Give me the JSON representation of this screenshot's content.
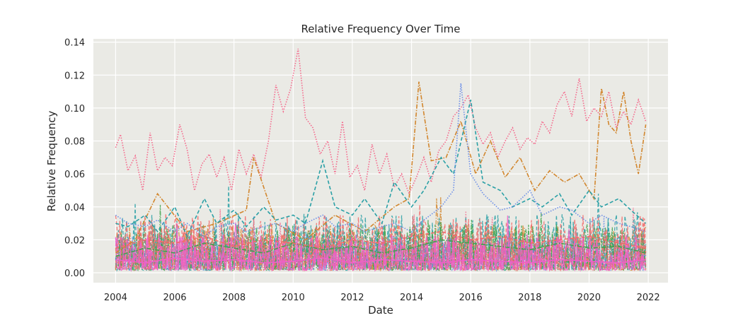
{
  "chart_data": {
    "type": "line",
    "title": "Relative Frequency Over Time",
    "xlabel": "Date",
    "ylabel": "Relative Frequency",
    "xlim": [
      "2003-04-01",
      "2022-09-01"
    ],
    "ylim": [
      -0.006,
      0.142
    ],
    "xticks": [
      "2004",
      "2006",
      "2008",
      "2010",
      "2012",
      "2014",
      "2016",
      "2018",
      "2020",
      "2022"
    ],
    "yticks": [
      "0.00",
      "0.02",
      "0.04",
      "0.06",
      "0.08",
      "0.10",
      "0.12",
      "0.14"
    ],
    "grid": true,
    "legend": "none",
    "background": "#eaeae5",
    "series": [
      {
        "color": "#f5678b",
        "dash": "dotted",
        "x": [
          "2004-01",
          "2004-03",
          "2004-06",
          "2004-09",
          "2004-12",
          "2005-03",
          "2005-06",
          "2005-09",
          "2005-12",
          "2006-03",
          "2006-06",
          "2006-09",
          "2006-12",
          "2007-03",
          "2007-06",
          "2007-09",
          "2007-12",
          "2008-03",
          "2008-06",
          "2008-09",
          "2008-12",
          "2009-03",
          "2009-06",
          "2009-09",
          "2009-12",
          "2010-03",
          "2010-06",
          "2010-09",
          "2010-12",
          "2011-03",
          "2011-06",
          "2011-09",
          "2011-12",
          "2012-03",
          "2012-06",
          "2012-09",
          "2012-12",
          "2013-03",
          "2013-06",
          "2013-09",
          "2013-12",
          "2014-03",
          "2014-06",
          "2014-09",
          "2014-12",
          "2015-03",
          "2015-06",
          "2015-09",
          "2015-12",
          "2016-03",
          "2016-06",
          "2016-09",
          "2016-12",
          "2017-03",
          "2017-06",
          "2017-09",
          "2017-12",
          "2018-03",
          "2018-06",
          "2018-09",
          "2018-12",
          "2019-03",
          "2019-06",
          "2019-09",
          "2019-12",
          "2020-03",
          "2020-06",
          "2020-09",
          "2020-12",
          "2021-03",
          "2021-06",
          "2021-09",
          "2021-12"
        ],
        "y": [
          0.076,
          0.084,
          0.062,
          0.071,
          0.05,
          0.085,
          0.062,
          0.07,
          0.065,
          0.09,
          0.075,
          0.05,
          0.066,
          0.072,
          0.058,
          0.07,
          0.05,
          0.075,
          0.06,
          0.072,
          0.058,
          0.08,
          0.114,
          0.098,
          0.112,
          0.136,
          0.094,
          0.088,
          0.072,
          0.08,
          0.06,
          0.092,
          0.058,
          0.065,
          0.05,
          0.078,
          0.06,
          0.072,
          0.052,
          0.06,
          0.048,
          0.058,
          0.07,
          0.055,
          0.074,
          0.08,
          0.095,
          0.1,
          0.108,
          0.088,
          0.078,
          0.085,
          0.07,
          0.08,
          0.088,
          0.075,
          0.082,
          0.078,
          0.092,
          0.085,
          0.102,
          0.11,
          0.095,
          0.118,
          0.092,
          0.1,
          0.095,
          0.11,
          0.088,
          0.098,
          0.09,
          0.105,
          0.092
        ]
      },
      {
        "color": "#d2872f",
        "dash": "dashdot",
        "x": [
          "2004-01",
          "2004-09",
          "2005-06",
          "2006-06",
          "2007-06",
          "2008-06",
          "2008-09",
          "2009-06",
          "2010-06",
          "2011-06",
          "2012-06",
          "2013-06",
          "2013-12",
          "2014-04",
          "2014-09",
          "2015-03",
          "2015-09",
          "2016-03",
          "2016-09",
          "2017-03",
          "2017-09",
          "2018-03",
          "2018-09",
          "2019-03",
          "2019-09",
          "2020-03",
          "2020-06",
          "2020-09",
          "2020-12",
          "2021-03",
          "2021-06",
          "2021-09",
          "2021-12"
        ],
        "y": [
          0.012,
          0.02,
          0.048,
          0.025,
          0.03,
          0.038,
          0.07,
          0.03,
          0.02,
          0.035,
          0.025,
          0.04,
          0.045,
          0.116,
          0.068,
          0.07,
          0.092,
          0.06,
          0.08,
          0.058,
          0.07,
          0.05,
          0.062,
          0.055,
          0.06,
          0.045,
          0.112,
          0.09,
          0.085,
          0.11,
          0.08,
          0.06,
          0.09
        ]
      },
      {
        "color": "#2aa0a6",
        "dash": "dashed",
        "x": [
          "2004-01",
          "2004-06",
          "2005-01",
          "2005-06",
          "2006-01",
          "2006-06",
          "2007-01",
          "2007-06",
          "2008-01",
          "2008-06",
          "2009-01",
          "2009-06",
          "2010-01",
          "2010-06",
          "2011-01",
          "2011-06",
          "2012-01",
          "2012-06",
          "2013-01",
          "2013-06",
          "2014-01",
          "2014-06",
          "2015-01",
          "2015-06",
          "2016-01",
          "2016-06",
          "2017-01",
          "2017-06",
          "2018-01",
          "2018-06",
          "2019-01",
          "2019-06",
          "2020-01",
          "2020-06",
          "2021-01",
          "2021-06",
          "2021-12"
        ],
        "y": [
          0.03,
          0.028,
          0.035,
          0.025,
          0.04,
          0.022,
          0.045,
          0.03,
          0.038,
          0.028,
          0.04,
          0.032,
          0.035,
          0.03,
          0.068,
          0.04,
          0.035,
          0.045,
          0.03,
          0.055,
          0.04,
          0.05,
          0.07,
          0.06,
          0.105,
          0.055,
          0.05,
          0.04,
          0.045,
          0.04,
          0.048,
          0.035,
          0.05,
          0.04,
          0.045,
          0.038,
          0.03
        ]
      },
      {
        "color": "#6b8ee8",
        "dash": "dotted",
        "x": [
          "2004-01",
          "2004-06",
          "2005-01",
          "2005-06",
          "2006-01",
          "2006-06",
          "2007-01",
          "2007-06",
          "2008-01",
          "2008-06",
          "2009-01",
          "2009-06",
          "2010-01",
          "2010-06",
          "2011-01",
          "2011-06",
          "2012-01",
          "2012-06",
          "2013-01",
          "2013-06",
          "2014-01",
          "2014-06",
          "2015-01",
          "2015-06",
          "2015-09",
          "2016-01",
          "2016-06",
          "2017-01",
          "2017-06",
          "2018-01",
          "2018-06",
          "2019-01",
          "2019-06",
          "2020-01",
          "2020-06",
          "2021-01",
          "2021-06",
          "2021-12"
        ],
        "y": [
          0.035,
          0.03,
          0.028,
          0.032,
          0.025,
          0.03,
          0.022,
          0.028,
          0.03,
          0.025,
          0.028,
          0.03,
          0.025,
          0.03,
          0.035,
          0.028,
          0.03,
          0.025,
          0.028,
          0.03,
          0.025,
          0.032,
          0.04,
          0.05,
          0.115,
          0.06,
          0.048,
          0.038,
          0.04,
          0.05,
          0.035,
          0.04,
          0.038,
          0.03,
          0.035,
          0.03,
          0.028,
          0.025
        ]
      },
      {
        "color": "#3fa34d",
        "dash": "dashdot",
        "x": [
          "2004-01",
          "2005-01",
          "2006-01",
          "2007-01",
          "2008-01",
          "2009-01",
          "2010-01",
          "2011-01",
          "2012-01",
          "2013-01",
          "2014-01",
          "2015-01",
          "2016-01",
          "2017-01",
          "2018-01",
          "2019-01",
          "2020-01",
          "2021-01",
          "2021-12"
        ],
        "y": [
          0.01,
          0.015,
          0.012,
          0.018,
          0.015,
          0.012,
          0.018,
          0.014,
          0.016,
          0.012,
          0.015,
          0.02,
          0.018,
          0.016,
          0.014,
          0.018,
          0.015,
          0.016,
          0.012
        ]
      },
      {
        "color": "#f26a6a",
        "dash": "dashed",
        "x": [
          "2004-01",
          "2005-01",
          "2006-01",
          "2007-01",
          "2008-01",
          "2009-01",
          "2010-01",
          "2011-01",
          "2012-01",
          "2013-01",
          "2014-01",
          "2015-01",
          "2016-01",
          "2017-01",
          "2018-01",
          "2019-01",
          "2020-01",
          "2021-01",
          "2021-12"
        ],
        "y": [
          0.015,
          0.02,
          0.018,
          0.022,
          0.016,
          0.02,
          0.018,
          0.015,
          0.02,
          0.018,
          0.022,
          0.025,
          0.02,
          0.022,
          0.018,
          0.02,
          0.022,
          0.018,
          0.015
        ]
      },
      {
        "color": "#ee60c8",
        "dash": "solid",
        "x": [
          "2004-01",
          "2005-01",
          "2006-01",
          "2007-01",
          "2008-01",
          "2009-01",
          "2010-01",
          "2011-01",
          "2012-01",
          "2013-01",
          "2014-01",
          "2015-01",
          "2016-01",
          "2017-01",
          "2018-01",
          "2019-01",
          "2020-01",
          "2021-01",
          "2021-12"
        ],
        "y": [
          0.008,
          0.006,
          0.009,
          0.007,
          0.008,
          0.006,
          0.007,
          0.009,
          0.006,
          0.008,
          0.007,
          0.006,
          0.008,
          0.007,
          0.006,
          0.008,
          0.007,
          0.006,
          0.008
        ]
      }
    ]
  }
}
